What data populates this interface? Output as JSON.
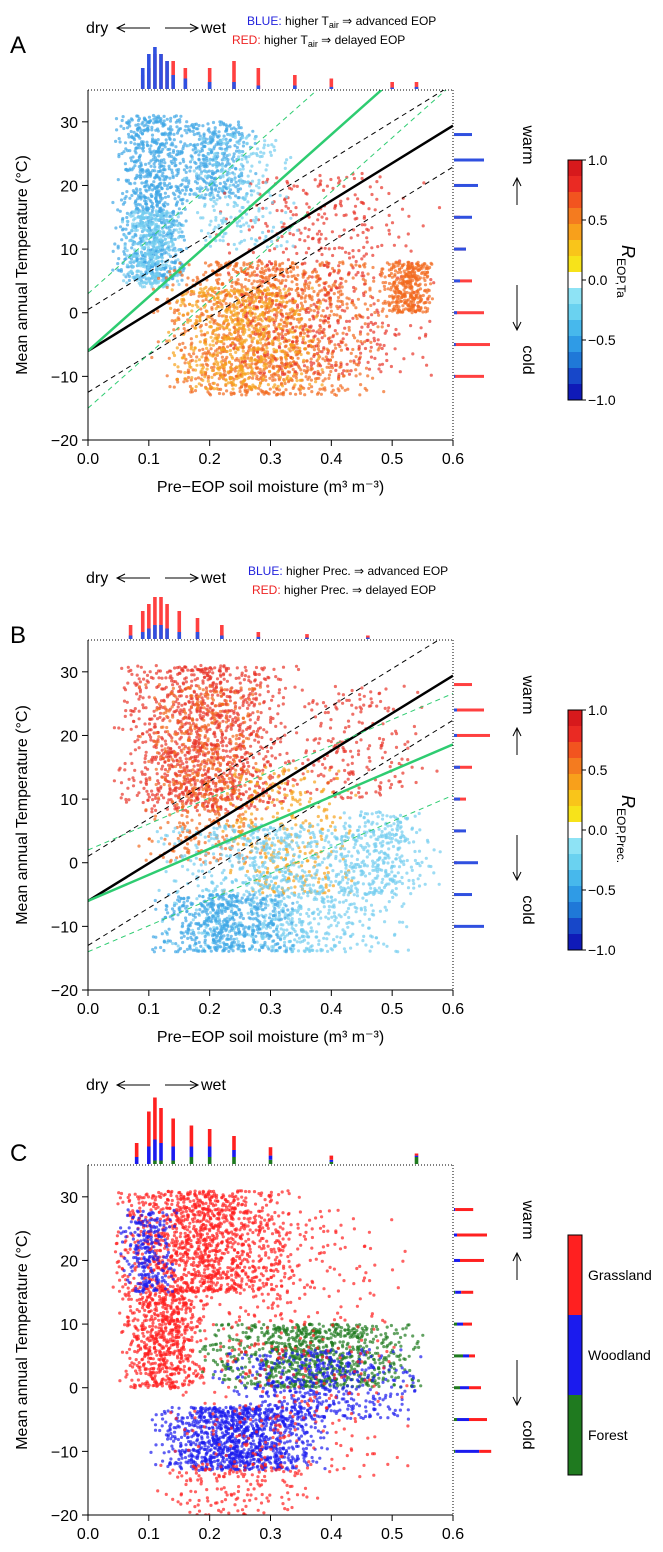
{
  "chart_data": [
    {
      "panel": "A",
      "type": "scatter",
      "xlabel": "Pre−EOP soil moisture (m³ m⁻³)",
      "ylabel": "Mean annual Temperature (°C)",
      "xlim": [
        0,
        0.6
      ],
      "ylim": [
        -20,
        35
      ],
      "xticks": [
        "0.0",
        "0.1",
        "0.2",
        "0.3",
        "0.4",
        "0.5",
        "0.6"
      ],
      "yticks": [
        "−20",
        "−10",
        "0",
        "10",
        "20",
        "30"
      ],
      "top_arrow": {
        "left": "dry",
        "right": "wet"
      },
      "legend_lines": [
        {
          "key": "BLUE:",
          "color": "#2222dd",
          "text_pre": "higher T",
          "sub": "air",
          "text_post": " ⇒ advanced EOP"
        },
        {
          "key": "RED:",
          "color": "#ee2222",
          "text_pre": "higher T",
          "sub": "air",
          "text_post": " ⇒ delayed EOP"
        }
      ],
      "side_labels": {
        "top": "warm",
        "bottom": "cold"
      },
      "colorbar": {
        "label": "R",
        "label_sub": "EOP,Ta",
        "ticks": [
          "1.0",
          "0.5",
          "0.0",
          "−0.5",
          "−1.0"
        ]
      },
      "fits": {
        "black": {
          "intercept": -6,
          "slope": 59
        },
        "green": {
          "intercept": -6,
          "slope": 85
        },
        "black_ci_offset": 6.5,
        "green_ci_offset": 9
      },
      "clusters": [
        {
          "color": "#3fa6e6",
          "x0": 0.04,
          "x1": 0.17,
          "y0": 5,
          "y1": 31,
          "n": 900
        },
        {
          "color": "#74cdf0",
          "x0": 0.05,
          "x1": 0.16,
          "y0": 4,
          "y1": 16,
          "n": 350
        },
        {
          "color": "#3fa6e6",
          "x0": 0.14,
          "x1": 0.28,
          "y0": 18,
          "y1": 30,
          "n": 350
        },
        {
          "color": "#f26a1e",
          "x0": 0.1,
          "x1": 0.5,
          "y0": -13,
          "y1": 8,
          "n": 1300
        },
        {
          "color": "#f7a21b",
          "x0": 0.12,
          "x1": 0.4,
          "y0": -12,
          "y1": 4,
          "n": 600
        },
        {
          "color": "#e8352a",
          "x0": 0.2,
          "x1": 0.58,
          "y0": -10,
          "y1": 22,
          "n": 500
        },
        {
          "color": "#f26a1e",
          "x0": 0.48,
          "x1": 0.57,
          "y0": 0,
          "y1": 8,
          "n": 350
        },
        {
          "color": "#74cdf0",
          "x0": 0.15,
          "x1": 0.35,
          "y0": 10,
          "y1": 28,
          "n": 250
        }
      ],
      "hist_top": [
        {
          "x": 0.09,
          "blue": 3,
          "red": 2
        },
        {
          "x": 0.1,
          "blue": 5,
          "red": 3
        },
        {
          "x": 0.11,
          "blue": 6,
          "red": 5
        },
        {
          "x": 0.12,
          "blue": 5,
          "red": 5
        },
        {
          "x": 0.13,
          "blue": 4,
          "red": 4
        },
        {
          "x": 0.14,
          "blue": 2,
          "red": 4
        },
        {
          "x": 0.16,
          "blue": 1.5,
          "red": 3
        },
        {
          "x": 0.2,
          "blue": 1,
          "red": 3
        },
        {
          "x": 0.24,
          "blue": 1,
          "red": 4
        },
        {
          "x": 0.28,
          "blue": 0.5,
          "red": 3
        },
        {
          "x": 0.34,
          "blue": 0.5,
          "red": 2
        },
        {
          "x": 0.4,
          "blue": 0.3,
          "red": 1.5
        },
        {
          "x": 0.5,
          "blue": 0.2,
          "red": 1
        },
        {
          "x": 0.54,
          "blue": 0.3,
          "red": 1
        }
      ],
      "hist_right": [
        {
          "y": 28,
          "blue": 3,
          "red": 0
        },
        {
          "y": 24,
          "blue": 5,
          "red": 0
        },
        {
          "y": 20,
          "blue": 4,
          "red": 1
        },
        {
          "y": 15,
          "blue": 3,
          "red": 1
        },
        {
          "y": 10,
          "blue": 2,
          "red": 2
        },
        {
          "y": 5,
          "blue": 1,
          "red": 3
        },
        {
          "y": 0,
          "blue": 0.5,
          "red": 5
        },
        {
          "y": -5,
          "blue": 0.3,
          "red": 6
        },
        {
          "y": -10,
          "blue": 0.2,
          "red": 5
        }
      ]
    },
    {
      "panel": "B",
      "type": "scatter",
      "xlabel": "Pre−EOP soil moisture (m³ m⁻³)",
      "ylabel": "Mean annual Temperature (°C)",
      "xlim": [
        0,
        0.6
      ],
      "ylim": [
        -20,
        35
      ],
      "xticks": [
        "0.0",
        "0.1",
        "0.2",
        "0.3",
        "0.4",
        "0.5",
        "0.6"
      ],
      "yticks": [
        "−20",
        "−10",
        "0",
        "10",
        "20",
        "30"
      ],
      "top_arrow": {
        "left": "dry",
        "right": "wet"
      },
      "legend_lines": [
        {
          "key": "BLUE:",
          "color": "#2222dd",
          "text_pre": "higher Prec.",
          "sub": "",
          "text_post": " ⇒ advanced EOP"
        },
        {
          "key": "RED:",
          "color": "#ee2222",
          "text_pre": "higher Prec.",
          "sub": "",
          "text_post": " ⇒ delayed EOP"
        }
      ],
      "side_labels": {
        "top": "warm",
        "bottom": "cold"
      },
      "colorbar": {
        "label": "R",
        "label_sub": "EOP,Prec.",
        "ticks": [
          "1.0",
          "0.5",
          "0.0",
          "−0.5",
          "−1.0"
        ]
      },
      "fits": {
        "black": {
          "intercept": -6,
          "slope": 59
        },
        "green": {
          "intercept": -6,
          "slope": 41
        },
        "black_ci_offset": 7,
        "green_ci_offset": 8
      },
      "clusters": [
        {
          "color": "#e8352a",
          "x0": 0.04,
          "x1": 0.35,
          "y0": 8,
          "y1": 31,
          "n": 1200
        },
        {
          "color": "#f26a1e",
          "x0": 0.08,
          "x1": 0.3,
          "y0": 0,
          "y1": 28,
          "n": 500
        },
        {
          "color": "#f7a21b",
          "x0": 0.2,
          "x1": 0.45,
          "y0": -5,
          "y1": 15,
          "n": 300
        },
        {
          "color": "#74cdf0",
          "x0": 0.1,
          "x1": 0.55,
          "y0": -14,
          "y1": 6,
          "n": 1100
        },
        {
          "color": "#3fa6e6",
          "x0": 0.1,
          "x1": 0.35,
          "y0": -14,
          "y1": -5,
          "n": 500
        },
        {
          "color": "#e8352a",
          "x0": 0.3,
          "x1": 0.58,
          "y0": 10,
          "y1": 28,
          "n": 200
        },
        {
          "color": "#74cdf0",
          "x0": 0.4,
          "x1": 0.58,
          "y0": -5,
          "y1": 8,
          "n": 250
        }
      ],
      "hist_top": [
        {
          "x": 0.07,
          "blue": 0.5,
          "red": 2
        },
        {
          "x": 0.09,
          "blue": 1,
          "red": 4
        },
        {
          "x": 0.1,
          "blue": 1.5,
          "red": 5
        },
        {
          "x": 0.11,
          "blue": 2,
          "red": 6
        },
        {
          "x": 0.12,
          "blue": 2,
          "red": 6
        },
        {
          "x": 0.13,
          "blue": 1.5,
          "red": 5
        },
        {
          "x": 0.15,
          "blue": 1,
          "red": 4
        },
        {
          "x": 0.18,
          "blue": 1,
          "red": 3
        },
        {
          "x": 0.22,
          "blue": 0.5,
          "red": 2
        },
        {
          "x": 0.28,
          "blue": 0.3,
          "red": 1
        },
        {
          "x": 0.36,
          "blue": 0.2,
          "red": 0.7
        },
        {
          "x": 0.46,
          "blue": 0.2,
          "red": 0.5
        }
      ],
      "hist_right": [
        {
          "y": 28,
          "blue": 0,
          "red": 3
        },
        {
          "y": 24,
          "blue": 0.5,
          "red": 5
        },
        {
          "y": 20,
          "blue": 0.5,
          "red": 6
        },
        {
          "y": 15,
          "blue": 1,
          "red": 3
        },
        {
          "y": 10,
          "blue": 1,
          "red": 2
        },
        {
          "y": 5,
          "blue": 2,
          "red": 1
        },
        {
          "y": 0,
          "blue": 4,
          "red": 0.5
        },
        {
          "y": -5,
          "blue": 3,
          "red": 0.3
        },
        {
          "y": -10,
          "blue": 5,
          "red": 0.3
        }
      ]
    },
    {
      "panel": "C",
      "type": "scatter",
      "xlabel": "Pre−EOP soil moisture (m³ m⁻³)",
      "ylabel": "Mean annual Temperature (°C)",
      "xlim": [
        0,
        0.6
      ],
      "ylim": [
        -20,
        35
      ],
      "xticks": [
        "0.0",
        "0.1",
        "0.2",
        "0.3",
        "0.4",
        "0.5",
        "0.6"
      ],
      "yticks": [
        "−20",
        "−10",
        "0",
        "10",
        "20",
        "30"
      ],
      "top_arrow": {
        "left": "dry",
        "right": "wet"
      },
      "side_labels": {
        "top": "warm",
        "bottom": "cold"
      },
      "categories": [
        {
          "name": "Grassland",
          "color": "#ff2020"
        },
        {
          "name": "Woodland",
          "color": "#1b1bee"
        },
        {
          "name": "Forest",
          "color": "#1f7a1f"
        }
      ],
      "clusters": [
        {
          "color": "#ff2020",
          "x0": 0.03,
          "x1": 0.35,
          "y0": 15,
          "y1": 31,
          "n": 1200
        },
        {
          "color": "#ff2020",
          "x0": 0.05,
          "x1": 0.2,
          "y0": 0,
          "y1": 16,
          "n": 700
        },
        {
          "color": "#1b1bee",
          "x0": 0.05,
          "x1": 0.15,
          "y0": 15,
          "y1": 28,
          "n": 250
        },
        {
          "color": "#1f7a1f",
          "x0": 0.18,
          "x1": 0.56,
          "y0": 0,
          "y1": 10,
          "n": 900
        },
        {
          "color": "#1b1bee",
          "x0": 0.2,
          "x1": 0.56,
          "y0": -5,
          "y1": 6,
          "n": 500
        },
        {
          "color": "#1b1bee",
          "x0": 0.1,
          "x1": 0.4,
          "y0": -13,
          "y1": -3,
          "n": 1100
        },
        {
          "color": "#ff2020",
          "x0": 0.1,
          "x1": 0.55,
          "y0": -14,
          "y1": 28,
          "n": 500
        },
        {
          "color": "#ff2020",
          "x0": 0.1,
          "x1": 0.4,
          "y0": -20,
          "y1": -12,
          "n": 150
        }
      ],
      "hist_top": [
        {
          "x": 0.08,
          "r": 2,
          "b": 1,
          "g": 0
        },
        {
          "x": 0.1,
          "r": 5,
          "b": 2.5,
          "g": 0
        },
        {
          "x": 0.11,
          "r": 6,
          "b": 3,
          "g": 0.5
        },
        {
          "x": 0.12,
          "r": 5,
          "b": 2.5,
          "g": 0.5
        },
        {
          "x": 0.14,
          "r": 4,
          "b": 2,
          "g": 0.5
        },
        {
          "x": 0.17,
          "r": 3,
          "b": 1.5,
          "g": 1
        },
        {
          "x": 0.2,
          "r": 2.5,
          "b": 1.5,
          "g": 1
        },
        {
          "x": 0.24,
          "r": 2,
          "b": 1,
          "g": 1
        },
        {
          "x": 0.3,
          "r": 1.2,
          "b": 0.6,
          "g": 0.6
        },
        {
          "x": 0.4,
          "r": 0.6,
          "b": 0.3,
          "g": 0.3
        },
        {
          "x": 0.54,
          "r": 0.3,
          "b": 0.2,
          "g": 1
        }
      ],
      "hist_right": [
        {
          "y": 28,
          "r": 3,
          "b": 0.2,
          "g": 0
        },
        {
          "y": 24,
          "r": 5,
          "b": 0.5,
          "g": 0
        },
        {
          "y": 20,
          "r": 4,
          "b": 1,
          "g": 0
        },
        {
          "y": 15,
          "r": 2,
          "b": 1,
          "g": 0.2
        },
        {
          "y": 10,
          "r": 1.5,
          "b": 1,
          "g": 0.5
        },
        {
          "y": 5,
          "r": 1,
          "b": 1,
          "g": 1.5
        },
        {
          "y": 0,
          "r": 2,
          "b": 1.5,
          "g": 1
        },
        {
          "y": -5,
          "r": 3,
          "b": 2,
          "g": 0.5
        },
        {
          "y": -10,
          "r": 2,
          "b": 4,
          "g": 0.2
        }
      ]
    }
  ]
}
